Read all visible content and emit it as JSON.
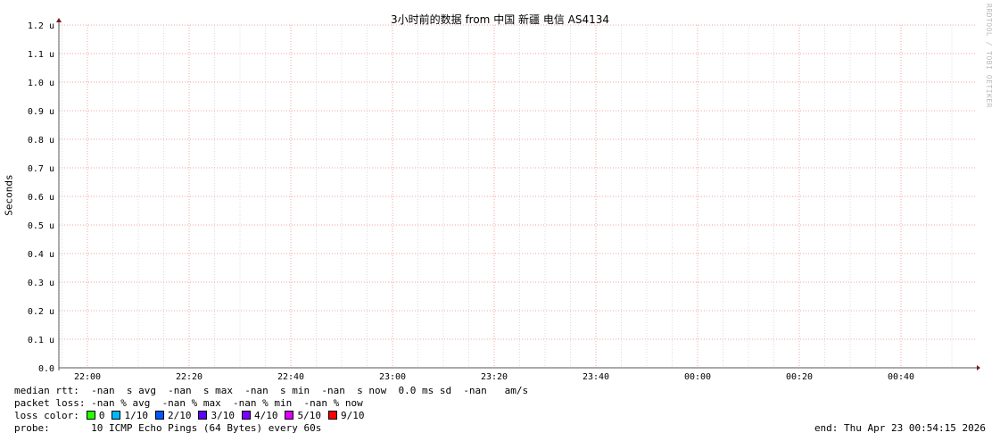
{
  "chart_data": {
    "type": "line",
    "title": "3小时前的数据 from 中国 新疆 电信 AS4134",
    "ylabel": "Seconds",
    "ylim": [
      0,
      1.2
    ],
    "yticks": [
      "0.0",
      "0.1 u",
      "0.2 u",
      "0.3 u",
      "0.4 u",
      "0.5 u",
      "0.6 u",
      "0.7 u",
      "0.8 u",
      "0.9 u",
      "1.0 u",
      "1.1 u",
      "1.2 u"
    ],
    "xticks": [
      "22:00",
      "22:20",
      "22:40",
      "23:00",
      "23:20",
      "23:40",
      "00:00",
      "00:20",
      "00:40"
    ],
    "grid": true,
    "series": []
  },
  "watermark": "RRDTOOL / TOBI OETIKER",
  "legend": {
    "median_rtt": "median rtt:  -nan  s avg  -nan  s max  -nan  s min  -nan  s now  0.0 ms sd  -nan   am/s",
    "packet_loss": "packet loss: -nan % avg  -nan % max  -nan % min  -nan % now",
    "loss_color_label": "loss color:",
    "loss_colors": [
      {
        "label": "0",
        "color": "#26ff00"
      },
      {
        "label": "1/10",
        "color": "#00b8ff"
      },
      {
        "label": "2/10",
        "color": "#0059ff"
      },
      {
        "label": "3/10",
        "color": "#5e00ff"
      },
      {
        "label": "4/10",
        "color": "#7e00ff"
      },
      {
        "label": "5/10",
        "color": "#dd00ff"
      },
      {
        "label": "9/10",
        "color": "#ff0000"
      }
    ],
    "probe": "probe:       10 ICMP Echo Pings (64 Bytes) every 60s",
    "end": "end: Thu Apr 23 00:54:15 2026"
  }
}
